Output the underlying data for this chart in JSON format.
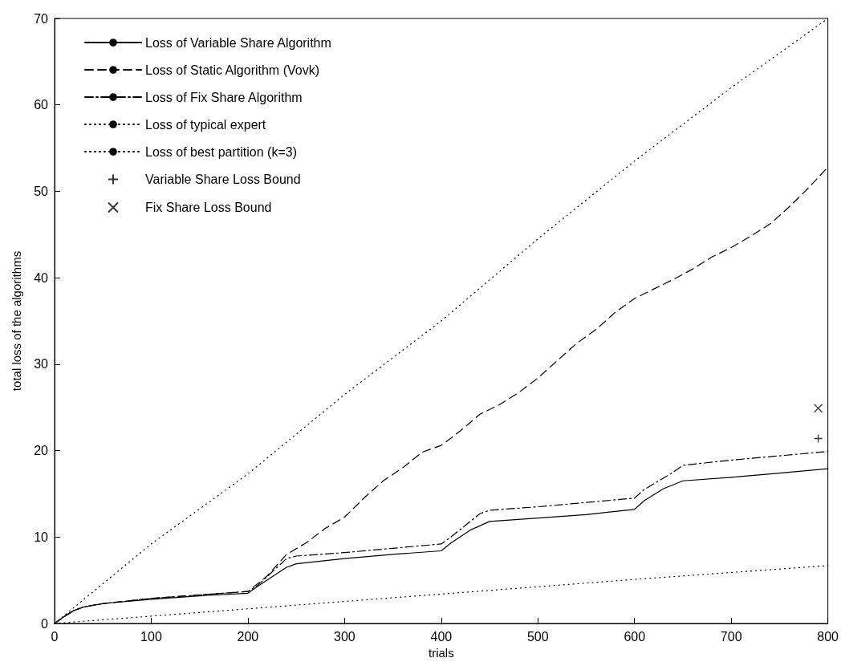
{
  "chart_data": {
    "type": "line",
    "xlabel": "trials",
    "ylabel": "total loss of the algorithms",
    "xlim": [
      0,
      800
    ],
    "ylim": [
      0,
      70
    ],
    "xticks": [
      0,
      100,
      200,
      300,
      400,
      500,
      600,
      700,
      800
    ],
    "yticks": [
      0,
      10,
      20,
      30,
      40,
      50,
      60,
      70
    ],
    "grid": false,
    "legend": "top left",
    "series": [
      {
        "name": "Loss of Variable Share Algorithm",
        "color": "#000000",
        "line_style": "solid",
        "x": [
          0,
          10,
          20,
          30,
          50,
          100,
          150,
          200,
          210,
          240,
          250,
          300,
          350,
          400,
          410,
          430,
          450,
          500,
          550,
          600,
          610,
          630,
          650,
          700,
          750,
          800
        ],
        "values": [
          0,
          0.8,
          1.5,
          1.9,
          2.3,
          2.8,
          3.2,
          3.5,
          4.3,
          6.5,
          6.9,
          7.5,
          8.0,
          8.4,
          9.3,
          10.8,
          11.8,
          12.2,
          12.6,
          13.2,
          14.2,
          15.6,
          16.5,
          16.9,
          17.4,
          17.9
        ]
      },
      {
        "name": "Loss of Static Algorithm (Vovk)",
        "color": "#000000",
        "line_style": "dashed",
        "x": [
          0,
          10,
          20,
          30,
          50,
          100,
          150,
          200,
          220,
          240,
          260,
          280,
          300,
          320,
          340,
          360,
          380,
          400,
          420,
          440,
          460,
          480,
          500,
          520,
          540,
          560,
          580,
          600,
          620,
          640,
          660,
          680,
          700,
          720,
          740,
          760,
          780,
          800
        ],
        "values": [
          0,
          0.8,
          1.5,
          1.9,
          2.3,
          2.9,
          3.3,
          3.7,
          5.5,
          8,
          9.3,
          11,
          12.3,
          14.5,
          16.5,
          18,
          19.8,
          20.6,
          22.3,
          24.2,
          25.3,
          26.7,
          28.4,
          30.4,
          32.4,
          34,
          36,
          37.6,
          38.7,
          39.8,
          41,
          42.4,
          43.5,
          44.8,
          46.2,
          48.2,
          50.4,
          52.8
        ]
      },
      {
        "name": "Loss of Fix Share Algorithm",
        "color": "#000000",
        "line_style": "dashdot",
        "x": [
          0,
          10,
          20,
          30,
          50,
          100,
          150,
          200,
          210,
          240,
          250,
          300,
          350,
          400,
          410,
          440,
          450,
          500,
          550,
          600,
          610,
          640,
          650,
          700,
          750,
          800
        ],
        "values": [
          0,
          0.8,
          1.5,
          1.9,
          2.3,
          2.9,
          3.3,
          3.7,
          4.4,
          7.5,
          7.8,
          8.2,
          8.7,
          9.2,
          10.0,
          12.7,
          13.1,
          13.5,
          14.0,
          14.5,
          15.5,
          17.5,
          18.3,
          18.9,
          19.4,
          19.9
        ]
      },
      {
        "name": "Loss of typical expert",
        "color": "#000000",
        "line_style": "dotted",
        "x": [
          0,
          100,
          200,
          300,
          400,
          500,
          600,
          700,
          800
        ],
        "values": [
          0,
          9.2,
          17.3,
          26.5,
          35,
          44.5,
          53.5,
          62,
          70
        ]
      },
      {
        "name": "Loss of best partition (k=3)",
        "color": "#000000",
        "line_style": "dotted",
        "x": [
          0,
          200,
          400,
          600,
          800
        ],
        "values": [
          0,
          1.7,
          3.4,
          5.1,
          6.7
        ]
      },
      {
        "name": "Variable Share Loss Bound",
        "type": "scatter",
        "color": "#000000",
        "marker": "plus",
        "x": [
          790
        ],
        "values": [
          21.4
        ]
      },
      {
        "name": "Fix Share Loss Bound",
        "type": "scatter",
        "color": "#000000",
        "marker": "cross",
        "x": [
          790
        ],
        "values": [
          24.9
        ]
      }
    ]
  }
}
